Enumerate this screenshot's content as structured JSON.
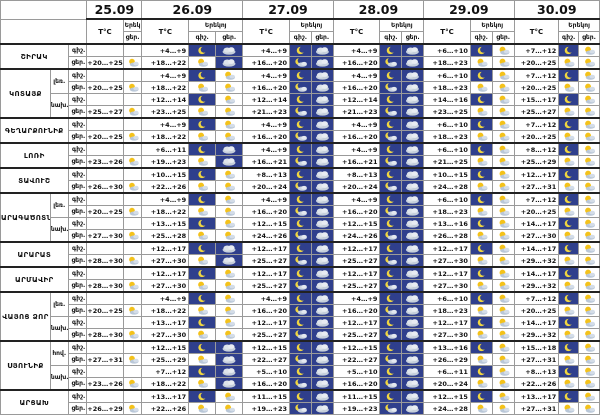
{
  "dates": [
    "25.09",
    "26.09",
    "27.09",
    "28.09",
    "29.09",
    "30.09"
  ],
  "col_labels": {
    "temp": "T°C",
    "day": "Երեկ",
    "day2": "ցեր.",
    "night_head": "Երեկոյ",
    "night": "գիշ.",
    "day3": "ցեր."
  },
  "regions": [
    {
      "name": "ՇԻՐԱԿ",
      "subs": null,
      "rows": [
        {
          "label": "գիշ.",
          "vals": [
            "",
            "+4…+9",
            "+4…+9",
            "+4…+9",
            "+6…+10",
            "+7…+12"
          ]
        },
        {
          "label": "ցեր.",
          "vals": [
            "+20…+25",
            "+18…+22",
            "+16…+20",
            "+16…+20",
            "+18…+23",
            "+20…+25"
          ]
        }
      ]
    },
    {
      "name": "ԿՈՏԱՅՔ",
      "subs": [
        "լեռ.",
        "նախ."
      ],
      "rows": [
        {
          "label": "գիշ.",
          "vals": [
            "",
            "+4…+9",
            "+4…+9",
            "+4…+9",
            "+6…+10",
            "+7…+12"
          ]
        },
        {
          "label": "ցեր.",
          "vals": [
            "+20…+25",
            "+18…+22",
            "+16…+20",
            "+16…+20",
            "+18…+23",
            "+20…+25"
          ]
        },
        {
          "label": "գիշ.",
          "vals": [
            "",
            "+12…+14",
            "+12…+14",
            "+12…+14",
            "+14…+16",
            "+15…+17"
          ]
        },
        {
          "label": "ցեր.",
          "vals": [
            "+25…+27",
            "+23…+25",
            "+21…+23",
            "+21…+23",
            "+23…+25",
            "+25…+27"
          ]
        }
      ]
    },
    {
      "name": "ԳԵՂԱՐՔՈՒՆԻՔ",
      "subs": null,
      "rows": [
        {
          "label": "գիշ.",
          "vals": [
            "",
            "+4…+9",
            "+4…+9",
            "+4…+9",
            "+6…+10",
            "+7…+12"
          ]
        },
        {
          "label": "ցեր.",
          "vals": [
            "+20…+25",
            "+18…+22",
            "+16…+20",
            "+16…+20",
            "+18…+23",
            "+20…+25"
          ]
        }
      ]
    },
    {
      "name": "ԼՈՌԻ",
      "subs": null,
      "rows": [
        {
          "label": "գիշ.",
          "vals": [
            "",
            "+6…+11",
            "+4…+9",
            "+4…+9",
            "+6…+10",
            "+8…+12"
          ]
        },
        {
          "label": "ցեր.",
          "vals": [
            "+23…+26",
            "+19…+23",
            "+16…+21",
            "+16…+21",
            "+21…+25",
            "+25…+29"
          ]
        }
      ]
    },
    {
      "name": "ՏԱՎՈՒՇ",
      "subs": null,
      "rows": [
        {
          "label": "գիշ.",
          "vals": [
            "",
            "+10…+15",
            "+8…+13",
            "+8…+13",
            "+10…+15",
            "+12…+17"
          ]
        },
        {
          "label": "ցեր.",
          "vals": [
            "+26…+30",
            "+22…+26",
            "+20…+24",
            "+20…+24",
            "+24…+28",
            "+27…+31"
          ]
        }
      ]
    },
    {
      "name": "ԱՐԱԳԱԾՈՏՆ",
      "subs": [
        "լեռ.",
        "նախ."
      ],
      "rows": [
        {
          "label": "գիշ.",
          "vals": [
            "",
            "+4…+9",
            "+4…+9",
            "+4…+9",
            "+6…+10",
            "+7…+12"
          ]
        },
        {
          "label": "ցեր.",
          "vals": [
            "+20…+25",
            "+18…+22",
            "+16…+20",
            "+16…+20",
            "+18…+23",
            "+20…+25"
          ]
        },
        {
          "label": "գիշ.",
          "vals": [
            "",
            "+13…+15",
            "+12…+15",
            "+12…+15",
            "+13…+16",
            "+14…+17"
          ]
        },
        {
          "label": "ցեր.",
          "vals": [
            "+27…+30",
            "+25…+28",
            "+24…+26",
            "+24…+26",
            "+26…+28",
            "+27…+30"
          ]
        }
      ]
    },
    {
      "name": "ԱՐԱՐԱՏ",
      "subs": null,
      "rows": [
        {
          "label": "գիշ.",
          "vals": [
            "",
            "+12…+17",
            "+12…+17",
            "+12…+17",
            "+12…+17",
            "+14…+17"
          ]
        },
        {
          "label": "ցեր.",
          "vals": [
            "+28…+30",
            "+27…+30",
            "+25…+27",
            "+25…+27",
            "+27…+30",
            "+29…+32"
          ]
        }
      ]
    },
    {
      "name": "ԱՐՄԱՎԻՐ",
      "subs": null,
      "rows": [
        {
          "label": "գիշ.",
          "vals": [
            "",
            "+12…+17",
            "+12…+17",
            "+12…+17",
            "+12…+17",
            "+14…+17"
          ]
        },
        {
          "label": "ցեր.",
          "vals": [
            "+28…+30",
            "+27…+30",
            "+25…+27",
            "+25…+27",
            "+27…+30",
            "+29…+32"
          ]
        }
      ]
    },
    {
      "name": "ՎԱՅՈՑ ՁՈՐ",
      "subs": [
        "լեռ.",
        "նախ."
      ],
      "rows": [
        {
          "label": "գիշ.",
          "vals": [
            "",
            "+4…+9",
            "+4…+9",
            "+4…+9",
            "+6…+10",
            "+7…+12"
          ]
        },
        {
          "label": "ցեր.",
          "vals": [
            "+20…+25",
            "+18…+22",
            "+16…+20",
            "+16…+20",
            "+18…+23",
            "+20…+25"
          ]
        },
        {
          "label": "գիշ.",
          "vals": [
            "",
            "+13…+17",
            "+12…+17",
            "+12…+17",
            "+12…+17",
            "+14…+17"
          ]
        },
        {
          "label": "ցեր.",
          "vals": [
            "+28…+30",
            "+27…+30",
            "+25…+27",
            "+25…+27",
            "+27…+30",
            "+29…+32"
          ]
        }
      ]
    },
    {
      "name": "ՍՅՈՒՆԻՔ",
      "subs": [
        "հով.",
        "նախ."
      ],
      "rows": [
        {
          "label": "գիշ.",
          "vals": [
            "",
            "+12…+15",
            "+12…+15",
            "+12…+15",
            "+13…+16",
            "+15…+18"
          ]
        },
        {
          "label": "ցեր.",
          "vals": [
            "+27…+31",
            "+25…+29",
            "+22…+27",
            "+22…+27",
            "+26…+29",
            "+27…+31"
          ]
        },
        {
          "label": "գիշ.",
          "vals": [
            "",
            "+7…+12",
            "+5…+10",
            "+5…+10",
            "+6…+11",
            "+8…+13"
          ]
        },
        {
          "label": "ցեր.",
          "vals": [
            "+23…+26",
            "+18…+22",
            "+16…+20",
            "+16…+20",
            "+20…+24",
            "+22…+26"
          ]
        }
      ]
    },
    {
      "name": "ԱՐՑԱԽ",
      "subs": null,
      "rows": [
        {
          "label": "գիշ.",
          "vals": [
            "",
            "+13…+17",
            "+11…+15",
            "+11…+15",
            "+12…+15",
            "+13…+17"
          ]
        },
        {
          "label": "ցեր.",
          "vals": [
            "+26…+29",
            "+22…+26",
            "+19…+23",
            "+19…+23",
            "+24…+28",
            "+27…+31"
          ]
        }
      ]
    }
  ],
  "icon_legend": {
    "sun-cloud": "sun partly covered by cloud (day)",
    "moon": "crescent moon (night)",
    "moon-cloud": "moon with cloud (night)",
    "cloud": "cloud on dark sky"
  }
}
